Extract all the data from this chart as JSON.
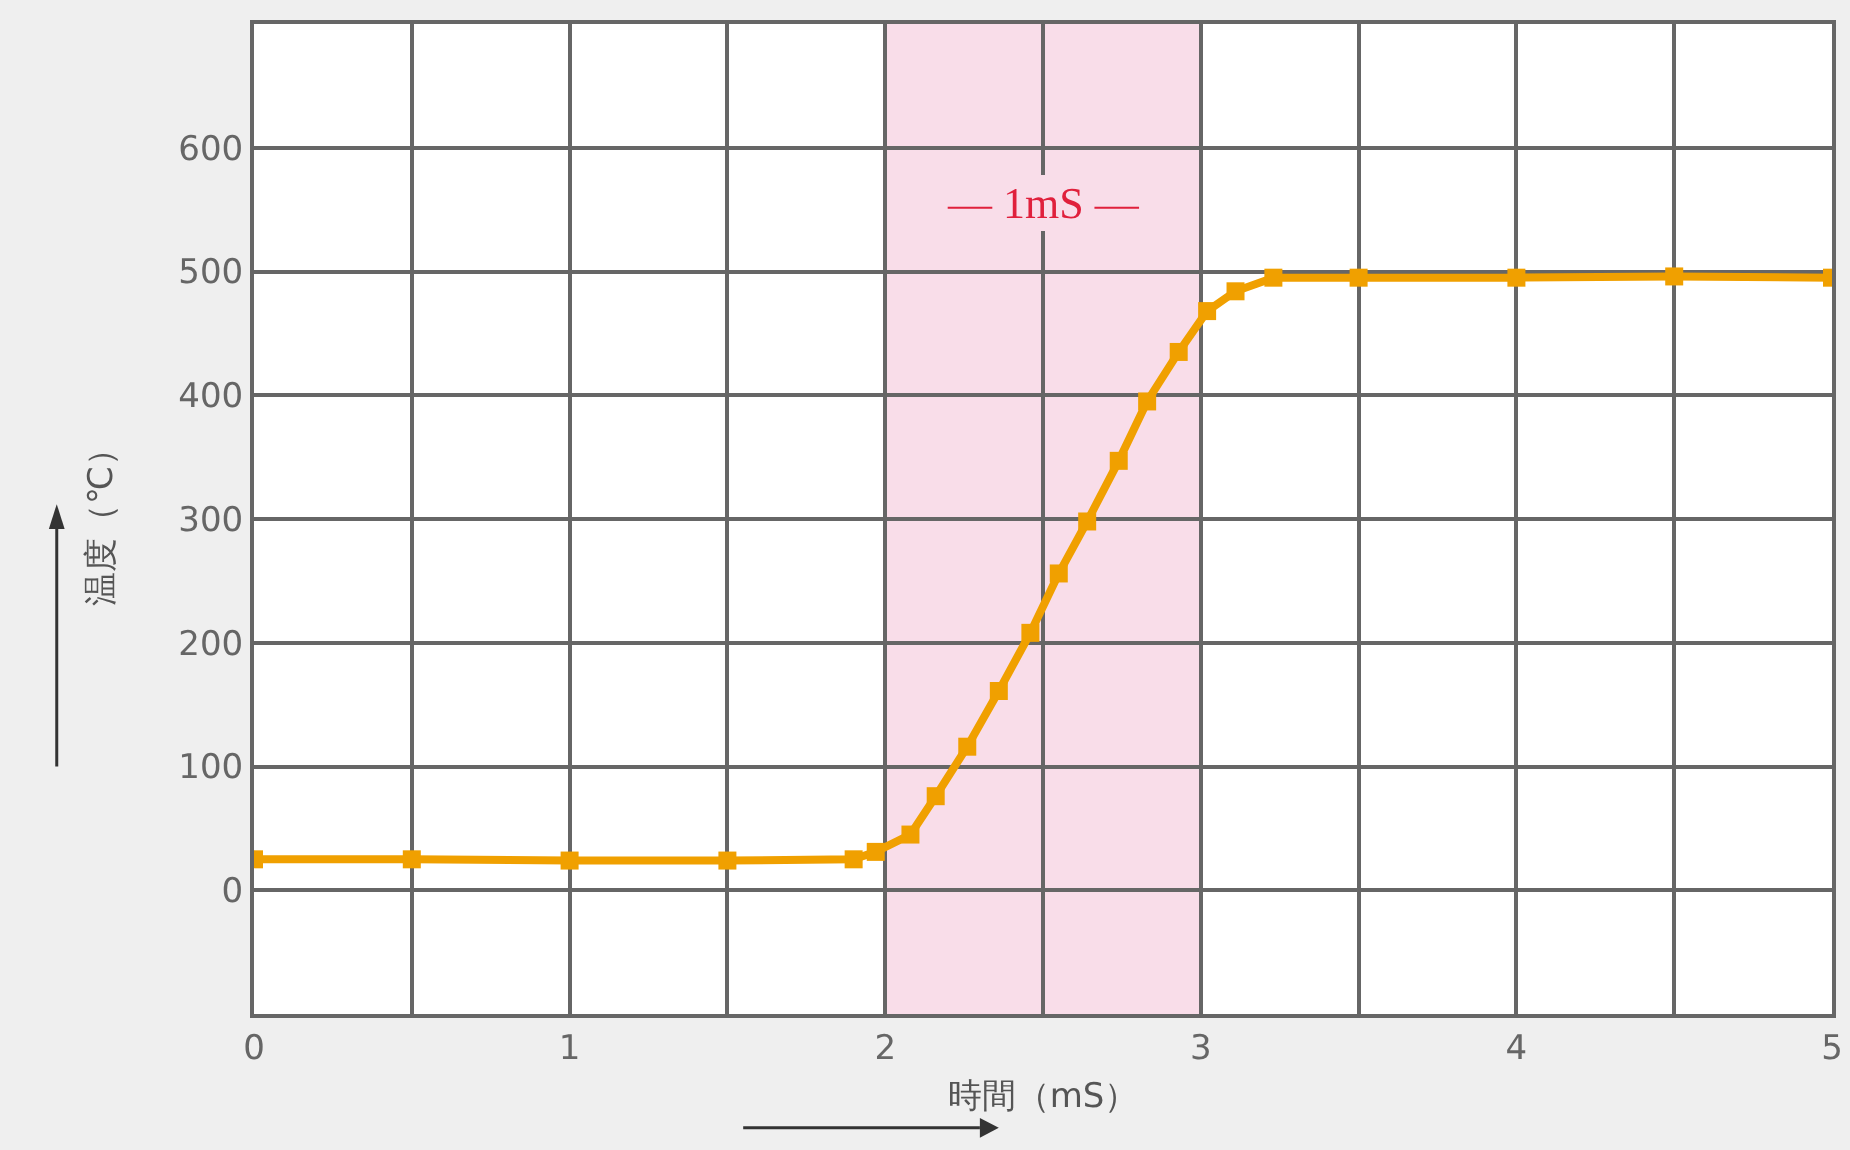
{
  "chart_data": {
    "type": "line",
    "xlabel": "時間（mS）",
    "ylabel": "温度（℃）",
    "x": [
      0,
      0.5,
      1,
      1.5,
      1.9,
      1.97,
      2.08,
      2.16,
      2.26,
      2.36,
      2.46,
      2.55,
      2.64,
      2.74,
      2.83,
      2.93,
      3.02,
      3.11,
      3.23,
      3.5,
      4,
      4.5,
      5
    ],
    "series": [
      {
        "color": "#f0a000",
        "values": [
          25,
          25,
          24,
          24,
          25,
          31,
          45,
          76,
          116,
          161,
          208,
          256,
          298,
          347,
          395,
          435,
          468,
          484,
          495,
          495,
          495,
          496,
          495
        ]
      }
    ],
    "marker": "square",
    "line_style": "solid",
    "grid": true,
    "xlim": [
      0,
      5
    ],
    "xticks": [
      0,
      {
        "value": 0.5,
        "label": null
      },
      1,
      {
        "value": 1.5,
        "label": null
      },
      2,
      {
        "value": 2.5,
        "label": null
      },
      3,
      {
        "value": 3.5,
        "label": null
      },
      4,
      {
        "value": 4.5,
        "label": null
      },
      5
    ],
    "ylim": [
      -100,
      700
    ],
    "yticks": [
      {
        "value": -100,
        "label": null
      },
      0,
      100,
      200,
      300,
      400,
      500,
      600,
      {
        "value": 700,
        "label": null
      }
    ],
    "bands": [
      {
        "axis": "x",
        "from": 2,
        "to": 3,
        "label": "— 1mS —",
        "color": "#f9dde9"
      }
    ]
  }
}
